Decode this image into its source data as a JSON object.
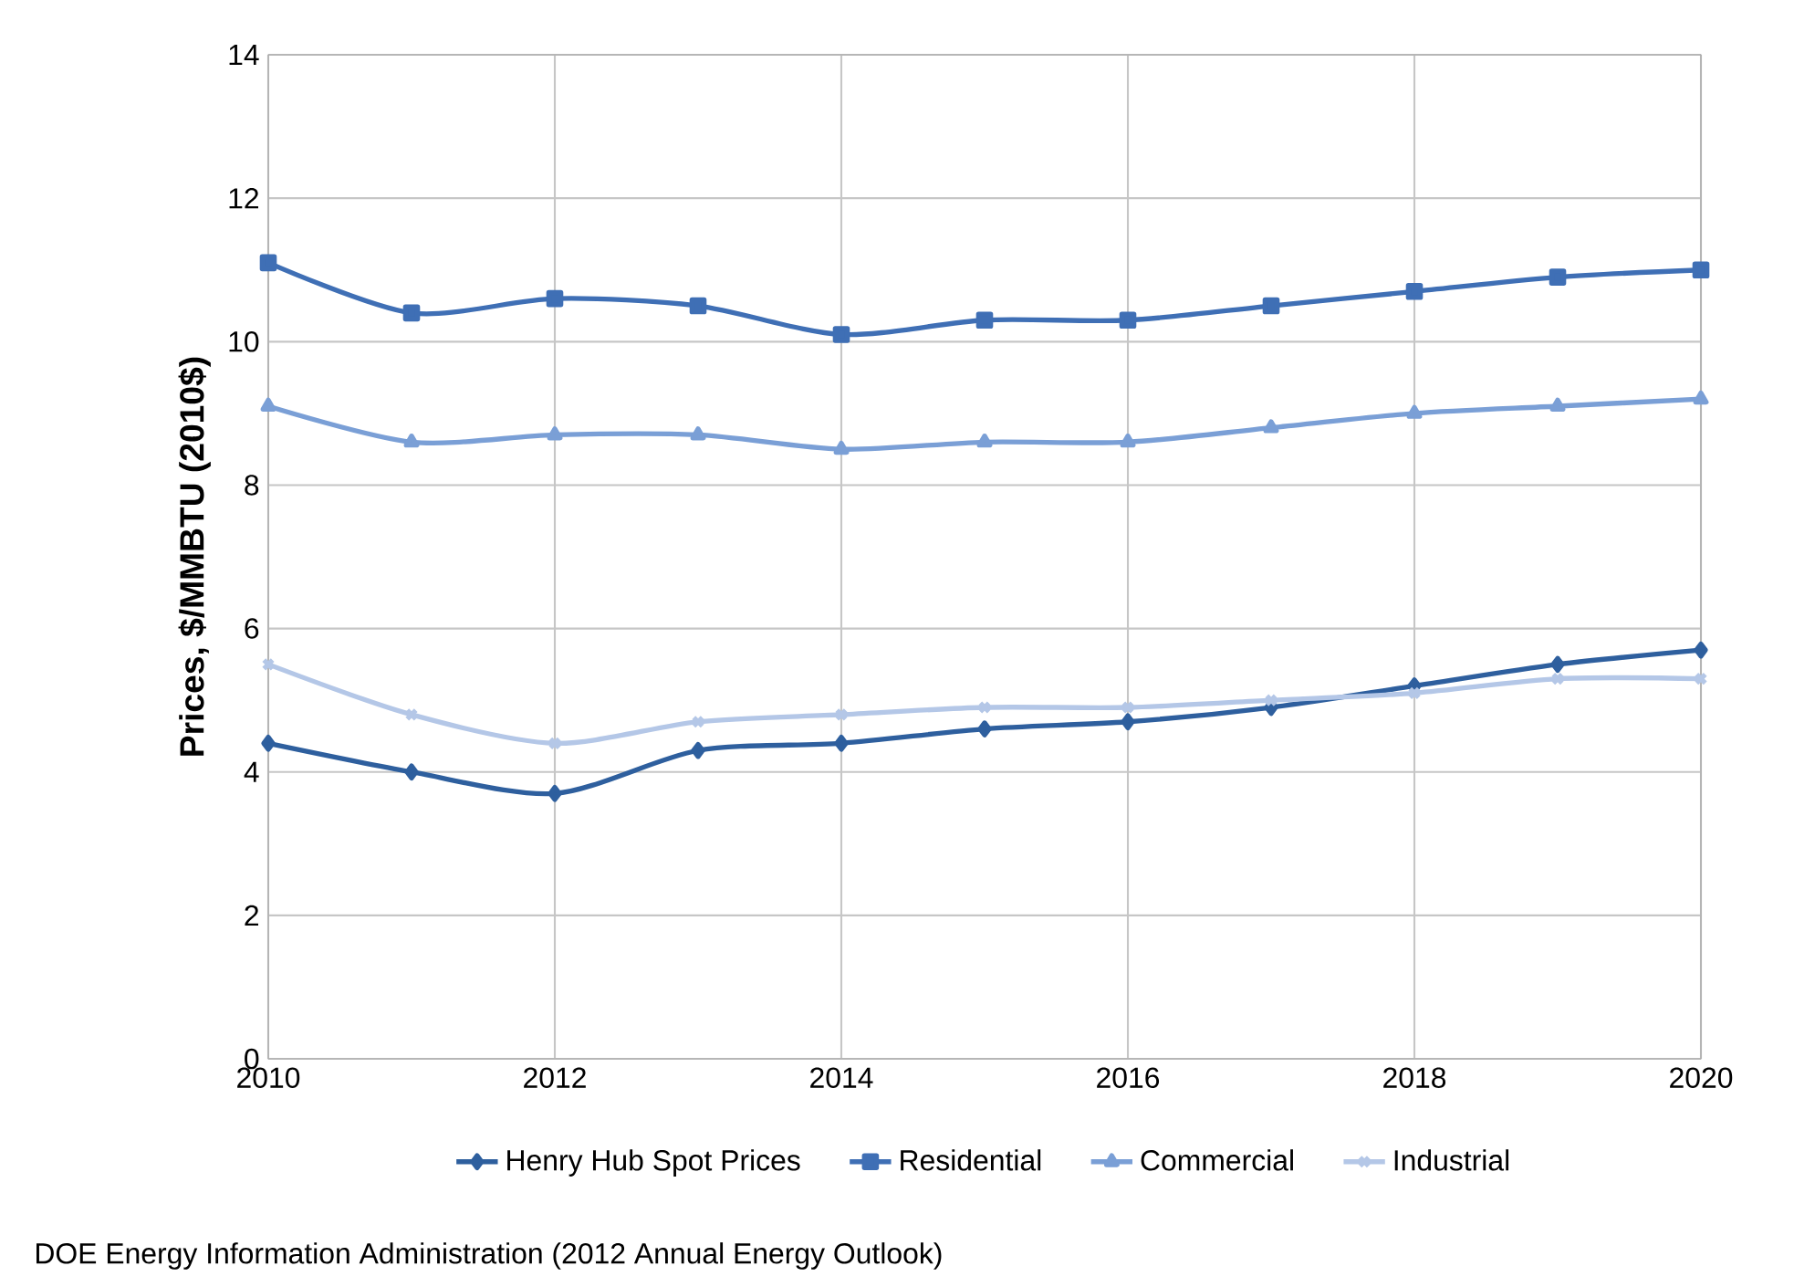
{
  "chart_data": {
    "type": "line",
    "ylabel": "Prices, $/MMBTU (2010$)",
    "x": [
      2010,
      2011,
      2012,
      2013,
      2014,
      2015,
      2016,
      2017,
      2018,
      2019,
      2020
    ],
    "series": [
      {
        "name": "Henry Hub Spot Prices",
        "color": "#2e5f9e",
        "marker": "diamond",
        "values": [
          4.4,
          4.0,
          3.7,
          4.3,
          4.4,
          4.6,
          4.7,
          4.9,
          5.2,
          5.5,
          5.7
        ]
      },
      {
        "name": "Residential",
        "color": "#3f6fb5",
        "marker": "square",
        "values": [
          11.1,
          10.4,
          10.6,
          10.5,
          10.1,
          10.3,
          10.3,
          10.5,
          10.7,
          10.9,
          11.0
        ]
      },
      {
        "name": "Commercial",
        "color": "#7a9fd6",
        "marker": "triangle",
        "values": [
          9.1,
          8.6,
          8.7,
          8.7,
          8.5,
          8.6,
          8.6,
          8.8,
          9.0,
          9.1,
          9.2
        ]
      },
      {
        "name": "Industrial",
        "color": "#b4c7e7",
        "marker": "cross",
        "values": [
          5.5,
          4.8,
          4.4,
          4.7,
          4.8,
          4.9,
          4.9,
          5.0,
          5.1,
          5.3,
          5.3
        ]
      }
    ],
    "xlim": [
      2010,
      2020
    ],
    "xticks": [
      2010,
      2012,
      2014,
      2016,
      2018,
      2020
    ],
    "ylim": [
      0,
      14
    ],
    "yticks": [
      0,
      2,
      4,
      6,
      8,
      10,
      12,
      14
    ],
    "grid": true,
    "legend": "bottom",
    "annotations": [
      "DOE Energy Information Administration (2012 Annual Energy Outlook)"
    ]
  }
}
